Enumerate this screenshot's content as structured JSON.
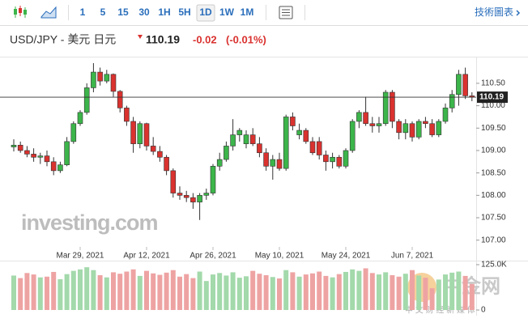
{
  "toolbar": {
    "intervals": [
      "1",
      "5",
      "15",
      "30",
      "1H",
      "5H",
      "1D",
      "1W",
      "1M"
    ],
    "selected_interval": "1D",
    "technical_chart": "技術圖表"
  },
  "header": {
    "symbol": "USD/JPY - 美元 日元",
    "change": -0.02,
    "change_percent": "(-0.01%)"
  },
  "watermark": {
    "logo": "investing.com",
    "site": "中金网",
    "site_sub": "中 文 财 经 新 媒 体"
  },
  "chart_data": {
    "type": "candlestick",
    "categories": [
      null,
      null,
      null,
      null,
      null,
      null,
      null,
      null,
      null,
      null,
      "Mar 29, 2021",
      null,
      null,
      null,
      null,
      null,
      null,
      null,
      null,
      null,
      "Apr 12, 2021",
      null,
      null,
      null,
      null,
      null,
      null,
      null,
      null,
      null,
      "Apr 26, 2021",
      null,
      null,
      null,
      null,
      null,
      null,
      null,
      null,
      null,
      "May 10, 2021",
      null,
      null,
      null,
      null,
      null,
      null,
      null,
      null,
      null,
      "May 24, 2021",
      null,
      null,
      null,
      null,
      null,
      null,
      null,
      null,
      null,
      "Jun 7, 2021",
      null,
      null,
      null,
      null,
      null,
      null,
      null,
      null,
      null
    ],
    "open": [
      109.08,
      109.12,
      109.0,
      108.92,
      108.85,
      108.88,
      108.75,
      108.55,
      108.68,
      109.2,
      109.6,
      109.85,
      110.4,
      110.75,
      110.55,
      110.7,
      110.32,
      109.95,
      109.65,
      109.15,
      109.6,
      109.1,
      108.98,
      108.85,
      108.55,
      108.05,
      108.0,
      107.95,
      107.85,
      108.0,
      108.05,
      108.65,
      108.8,
      109.1,
      109.35,
      109.15,
      109.35,
      109.15,
      108.95,
      108.65,
      108.8,
      108.6,
      109.75,
      109.35,
      109.45,
      109.2,
      109.2,
      108.9,
      108.75,
      108.85,
      108.65,
      109.0,
      109.65,
      109.85,
      109.6,
      109.55,
      109.6,
      110.3,
      109.65,
      109.4,
      109.6,
      109.3,
      109.65,
      109.6,
      109.35,
      109.65,
      109.95,
      110.25,
      110.7,
      110.22
    ],
    "high": [
      109.25,
      109.2,
      109.1,
      109.05,
      108.95,
      109.0,
      108.85,
      108.75,
      109.3,
      109.65,
      109.9,
      110.5,
      110.95,
      110.85,
      110.8,
      110.72,
      110.35,
      110.0,
      109.75,
      109.65,
      109.62,
      109.3,
      109.1,
      108.9,
      108.6,
      108.2,
      108.1,
      108.05,
      108.05,
      108.15,
      108.7,
      108.95,
      109.2,
      109.7,
      109.5,
      109.45,
      109.5,
      109.3,
      109.05,
      108.9,
      108.95,
      109.8,
      109.85,
      109.6,
      109.5,
      109.3,
      109.3,
      109.0,
      108.95,
      108.9,
      109.05,
      109.7,
      109.9,
      110.2,
      109.75,
      109.75,
      110.35,
      110.35,
      109.7,
      109.7,
      109.65,
      109.7,
      109.75,
      109.7,
      109.7,
      110.05,
      110.35,
      110.8,
      110.85,
      110.3
    ],
    "low": [
      108.98,
      108.95,
      108.85,
      108.75,
      108.7,
      108.65,
      108.45,
      108.5,
      108.65,
      109.15,
      109.55,
      109.8,
      110.3,
      110.45,
      110.5,
      110.2,
      109.85,
      109.55,
      108.95,
      109.05,
      109.0,
      108.9,
      108.75,
      108.45,
      107.95,
      107.9,
      107.85,
      107.7,
      107.45,
      107.9,
      108.0,
      108.55,
      108.75,
      109.0,
      109.2,
      109.05,
      109.1,
      108.85,
      108.55,
      108.35,
      108.55,
      108.55,
      109.45,
      109.25,
      109.15,
      108.9,
      108.8,
      108.55,
      108.6,
      108.6,
      108.6,
      108.95,
      109.5,
      109.55,
      109.4,
      109.4,
      109.55,
      109.5,
      109.25,
      109.25,
      109.2,
      109.25,
      109.5,
      109.3,
      109.3,
      109.6,
      109.85,
      110.0,
      110.15,
      110.1
    ],
    "close": [
      109.12,
      109.0,
      108.92,
      108.85,
      108.88,
      108.75,
      108.55,
      108.68,
      109.2,
      109.6,
      109.85,
      110.4,
      110.75,
      110.55,
      110.7,
      110.32,
      109.95,
      109.65,
      109.15,
      109.6,
      109.1,
      108.98,
      108.85,
      108.55,
      108.05,
      108.0,
      107.95,
      107.85,
      108.0,
      108.05,
      108.65,
      108.8,
      109.1,
      109.35,
      109.45,
      109.35,
      109.15,
      108.95,
      108.65,
      108.8,
      108.6,
      109.75,
      109.55,
      109.45,
      109.2,
      108.95,
      108.9,
      108.75,
      108.85,
      108.65,
      109.0,
      109.65,
      109.85,
      109.6,
      109.55,
      109.6,
      110.3,
      109.65,
      109.4,
      109.6,
      109.3,
      109.65,
      109.6,
      109.35,
      109.65,
      109.95,
      110.25,
      110.7,
      110.22,
      110.19
    ],
    "volume": [
      95000,
      88000,
      102000,
      98000,
      90000,
      92000,
      105000,
      85000,
      99000,
      108000,
      112000,
      118000,
      110000,
      96000,
      90000,
      104000,
      100000,
      106000,
      112000,
      94000,
      108000,
      101000,
      97000,
      103000,
      110000,
      92000,
      99000,
      88000,
      106000,
      80000,
      98000,
      102000,
      95000,
      104000,
      89000,
      93000,
      108000,
      100000,
      96000,
      91000,
      87000,
      110000,
      104000,
      92000,
      98000,
      101000,
      106000,
      94000,
      90000,
      99000,
      105000,
      112000,
      108000,
      115000,
      102000,
      98000,
      104000,
      96000,
      92000,
      100000,
      110000,
      95000,
      89000,
      60000,
      84000,
      98000,
      103000,
      106000,
      94000,
      72000
    ],
    "last_price": 110.19,
    "ylim": [
      106.85,
      110.95
    ],
    "yticks": [
      {
        "value": 107,
        "label": "107.00"
      },
      {
        "value": 107.5,
        "label": "107.50"
      },
      {
        "value": 108,
        "label": "108.00"
      },
      {
        "value": 108.5,
        "label": "108.50"
      },
      {
        "value": 109,
        "label": "109.00"
      },
      {
        "value": 109.5,
        "label": "109.50"
      },
      {
        "value": 110,
        "label": "110.00"
      },
      {
        "value": 110.5,
        "label": "110.50"
      }
    ],
    "volume_lim": [
      0,
      125000
    ],
    "volume_ticks": [
      {
        "value": 0,
        "label": "0"
      },
      {
        "value": 125000,
        "label": "125.0K"
      }
    ],
    "grid": false,
    "up_color": "#3cb54a",
    "down_color": "#d9322f",
    "volume_up_color": "#a3d9ab",
    "volume_down_color": "#eea3a3"
  }
}
